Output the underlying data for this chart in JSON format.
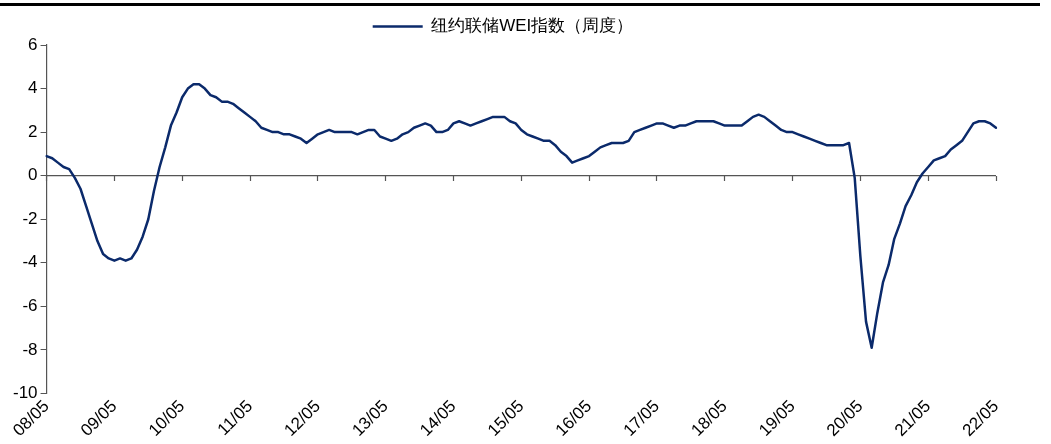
{
  "chart_data": {
    "type": "line",
    "legend": "top",
    "marker": "none",
    "line_style": "solid",
    "grid": false,
    "ylim": [
      -10,
      6
    ],
    "ref_lines": [
      {
        "axis": "y",
        "value": 0,
        "color": "#555555",
        "line_style": "solid"
      }
    ],
    "yticks": [
      -10,
      -8,
      -6,
      -4,
      -2,
      0,
      2,
      4,
      6
    ],
    "categories": [
      "08/05",
      null,
      null,
      null,
      null,
      null,
      null,
      null,
      null,
      null,
      null,
      null,
      "09/05",
      null,
      null,
      null,
      null,
      null,
      null,
      null,
      null,
      null,
      null,
      null,
      "10/05",
      null,
      null,
      null,
      null,
      null,
      null,
      null,
      null,
      null,
      null,
      null,
      "11/05",
      null,
      null,
      null,
      null,
      null,
      null,
      null,
      null,
      null,
      null,
      null,
      "12/05",
      null,
      null,
      null,
      null,
      null,
      null,
      null,
      null,
      null,
      null,
      null,
      "13/05",
      null,
      null,
      null,
      null,
      null,
      null,
      null,
      null,
      null,
      null,
      null,
      "14/05",
      null,
      null,
      null,
      null,
      null,
      null,
      null,
      null,
      null,
      null,
      null,
      "15/05",
      null,
      null,
      null,
      null,
      null,
      null,
      null,
      null,
      null,
      null,
      null,
      "16/05",
      null,
      null,
      null,
      null,
      null,
      null,
      null,
      null,
      null,
      null,
      null,
      "17/05",
      null,
      null,
      null,
      null,
      null,
      null,
      null,
      null,
      null,
      null,
      null,
      "18/05",
      null,
      null,
      null,
      null,
      null,
      null,
      null,
      null,
      null,
      null,
      null,
      "19/05",
      null,
      null,
      null,
      null,
      null,
      null,
      null,
      null,
      null,
      null,
      null,
      "20/05",
      null,
      null,
      null,
      null,
      null,
      null,
      null,
      null,
      null,
      null,
      null,
      "21/05",
      null,
      null,
      null,
      null,
      null,
      null,
      null,
      null,
      null,
      null,
      null,
      "22/05"
    ],
    "series": [
      {
        "name": "纽约联储WEI指数（周度）",
        "color": "#0b2a6b",
        "values": [
          0.9,
          0.8,
          0.6,
          0.4,
          0.3,
          -0.1,
          -0.6,
          -1.4,
          -2.2,
          -3.0,
          -3.6,
          -3.8,
          -3.9,
          -3.8,
          -3.9,
          -3.8,
          -3.4,
          -2.8,
          -2.0,
          -0.7,
          0.4,
          1.3,
          2.3,
          2.9,
          3.6,
          4.0,
          4.2,
          4.2,
          4.0,
          3.7,
          3.6,
          3.4,
          3.4,
          3.3,
          3.1,
          2.9,
          2.7,
          2.5,
          2.2,
          2.1,
          2.0,
          2.0,
          1.9,
          1.9,
          1.8,
          1.7,
          1.5,
          1.7,
          1.9,
          2.0,
          2.1,
          2.0,
          2.0,
          2.0,
          2.0,
          1.9,
          2.0,
          2.1,
          2.1,
          1.8,
          1.7,
          1.6,
          1.7,
          1.9,
          2.0,
          2.2,
          2.3,
          2.4,
          2.3,
          2.0,
          2.0,
          2.1,
          2.4,
          2.5,
          2.4,
          2.3,
          2.4,
          2.5,
          2.6,
          2.7,
          2.7,
          2.7,
          2.5,
          2.4,
          2.1,
          1.9,
          1.8,
          1.7,
          1.6,
          1.6,
          1.4,
          1.1,
          0.9,
          0.6,
          0.7,
          0.8,
          0.9,
          1.1,
          1.3,
          1.4,
          1.5,
          1.5,
          1.5,
          1.6,
          2.0,
          2.1,
          2.2,
          2.3,
          2.4,
          2.4,
          2.3,
          2.2,
          2.3,
          2.3,
          2.4,
          2.5,
          2.5,
          2.5,
          2.5,
          2.4,
          2.3,
          2.3,
          2.3,
          2.3,
          2.5,
          2.7,
          2.8,
          2.7,
          2.5,
          2.3,
          2.1,
          2.0,
          2.0,
          1.9,
          1.8,
          1.7,
          1.6,
          1.5,
          1.4,
          1.4,
          1.4,
          1.4,
          1.5,
          -0.1,
          -3.7,
          -6.7,
          -7.9,
          -6.3,
          -4.9,
          -4.1,
          -2.9,
          -2.2,
          -1.4,
          -0.9,
          -0.3,
          0.1,
          0.4,
          0.7,
          0.8,
          0.9,
          1.2,
          1.4,
          1.6,
          2.0,
          2.4,
          2.5,
          2.5,
          2.4,
          2.2
        ]
      }
    ]
  }
}
